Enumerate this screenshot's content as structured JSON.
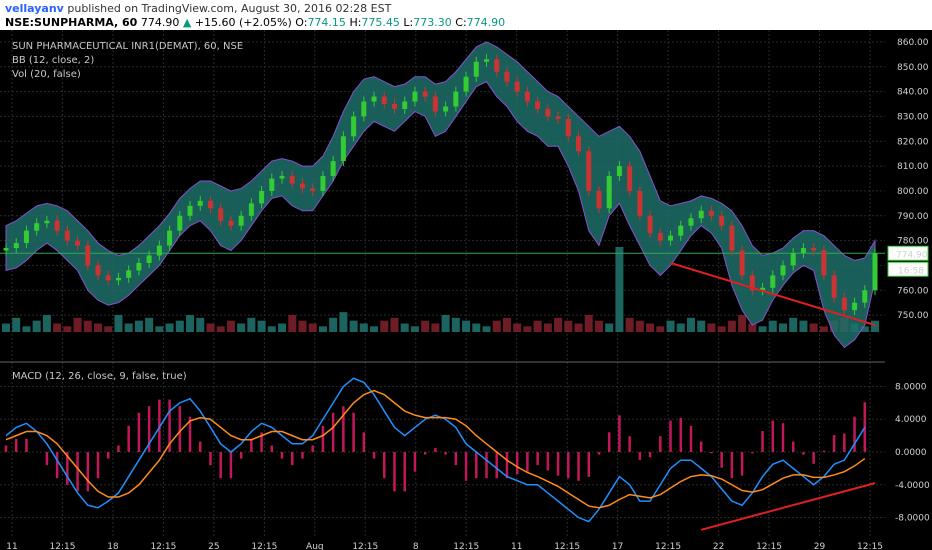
{
  "header": {
    "author": "vellayanv",
    "published_text": "published on TradingView.com, August 30, 2016 02:28 EST",
    "symbol_interval": "NSE:SUNPHARMA, 60",
    "last": "774.90",
    "change": "+15.60 (+2.05%)",
    "o_label": "O:",
    "o_value": "774.15",
    "h_label": "H:",
    "h_value": "775.45",
    "l_label": "L:",
    "l_value": "773.30",
    "c_label": "C:",
    "c_value": "774.90"
  },
  "indicators": {
    "symbol_title": "SUN PHARMACEUTICAL INR1(DEMAT), 60, NSE",
    "bb": "BB (12, close, 2)",
    "vol": "Vol (20, false)",
    "macd": "MACD (12, 26, close, 9, false, true)"
  },
  "colors": {
    "background": "#000000",
    "grid": "#2a2a2a",
    "bb_fill": "#1f6f6a",
    "bb_border": "#8a4fd0",
    "up": "#33cc33",
    "down": "#cc3333",
    "macd_line": "#1e90ff",
    "signal_line": "#ff8c1a",
    "histogram": "#c2185b",
    "trendline": "#e02020",
    "hline": "#2fa84f"
  },
  "chart_data": [
    {
      "type": "line",
      "name_hint": "price-panel",
      "x_ticks": [
        "11",
        "12:15",
        "18",
        "12:15",
        "25",
        "12:15",
        "Aug",
        "12:15",
        "8",
        "12:15",
        "11",
        "12:15",
        "17",
        "12:15",
        "22",
        "12:15",
        "29",
        "12:15"
      ],
      "y_ticks": [
        750,
        760,
        770,
        780,
        790,
        800,
        810,
        820,
        830,
        840,
        850,
        860
      ],
      "ylim": [
        744,
        864
      ],
      "close": [
        777,
        779,
        784,
        787,
        788,
        784,
        780,
        778,
        770,
        766,
        764,
        765,
        768,
        771,
        774,
        778,
        784,
        790,
        794,
        796,
        793,
        788,
        786,
        790,
        795,
        800,
        805,
        806,
        803,
        801,
        800,
        806,
        812,
        822,
        830,
        836,
        838,
        835,
        833,
        836,
        840,
        838,
        832,
        834,
        840,
        846,
        852,
        853,
        848,
        844,
        840,
        836,
        833,
        830,
        829,
        822,
        816,
        800,
        793,
        806,
        810,
        800,
        790,
        783,
        780,
        782,
        786,
        789,
        792,
        790,
        786,
        776,
        766,
        760,
        761,
        766,
        770,
        775,
        777,
        776,
        766,
        757,
        752,
        755,
        760,
        774.9
      ],
      "bb_upper": [
        786,
        788,
        791,
        794,
        795,
        794,
        792,
        788,
        784,
        779,
        776,
        774,
        775,
        778,
        782,
        786,
        791,
        797,
        801,
        804,
        804,
        802,
        800,
        801,
        804,
        808,
        812,
        813,
        812,
        810,
        810,
        814,
        822,
        832,
        840,
        845,
        846,
        844,
        842,
        843,
        846,
        846,
        843,
        844,
        848,
        853,
        858,
        860,
        858,
        855,
        852,
        848,
        844,
        840,
        838,
        834,
        830,
        826,
        822,
        824,
        826,
        822,
        816,
        806,
        796,
        794,
        795,
        796,
        798,
        797,
        795,
        792,
        786,
        778,
        774,
        775,
        777,
        781,
        784,
        784,
        782,
        778,
        774,
        772,
        773,
        780
      ],
      "bb_lower": [
        768,
        769,
        772,
        776,
        779,
        776,
        772,
        768,
        760,
        756,
        754,
        755,
        758,
        762,
        766,
        770,
        776,
        782,
        786,
        788,
        784,
        778,
        776,
        780,
        786,
        792,
        797,
        798,
        794,
        792,
        792,
        798,
        804,
        812,
        818,
        824,
        828,
        826,
        824,
        828,
        832,
        830,
        822,
        824,
        830,
        836,
        842,
        844,
        838,
        834,
        828,
        824,
        822,
        818,
        818,
        810,
        800,
        784,
        778,
        790,
        795,
        786,
        778,
        770,
        766,
        770,
        776,
        782,
        786,
        783,
        777,
        762,
        752,
        746,
        748,
        756,
        762,
        767,
        770,
        768,
        752,
        742,
        737,
        740,
        746,
        764
      ],
      "hline": 774.9,
      "volume": [
        3,
        5,
        2,
        4,
        6,
        3,
        2,
        5,
        4,
        3,
        2,
        6,
        3,
        4,
        5,
        2,
        3,
        4,
        6,
        5,
        3,
        2,
        4,
        3,
        5,
        4,
        2,
        3,
        6,
        4,
        3,
        2,
        5,
        7,
        4,
        3,
        2,
        4,
        5,
        3,
        2,
        4,
        3,
        6,
        5,
        4,
        3,
        2,
        4,
        5,
        3,
        2,
        4,
        3,
        5,
        4,
        3,
        6,
        4,
        3,
        30,
        5,
        4,
        3,
        2,
        4,
        3,
        5,
        4,
        3,
        2,
        4,
        6,
        3,
        2,
        4,
        3,
        5,
        4,
        3,
        2,
        4,
        5,
        3,
        2,
        4
      ],
      "trendline": [
        [
          65,
          771
        ],
        [
          85,
          746
        ]
      ],
      "price_labels": [
        "774.90",
        "16:58"
      ]
    },
    {
      "type": "line",
      "name_hint": "macd-panel",
      "y_ticks": [
        -8,
        -4,
        0,
        4,
        8
      ],
      "ylim": [
        -10.5,
        10.5
      ],
      "macd": [
        2,
        3,
        3.5,
        2.5,
        1,
        -1,
        -3,
        -5,
        -6.5,
        -6.8,
        -6,
        -5,
        -3,
        -1,
        1,
        3,
        5,
        6,
        6.5,
        5,
        3,
        1,
        0,
        1,
        2.5,
        3.5,
        3,
        2,
        1,
        1,
        2,
        4,
        6,
        8,
        9,
        8.5,
        7,
        5,
        3,
        2,
        3,
        4,
        4.5,
        4,
        3,
        1,
        0,
        -1,
        -2,
        -3,
        -3.5,
        -4,
        -4,
        -5,
        -6,
        -7,
        -8,
        -8.5,
        -7,
        -5,
        -3,
        -4,
        -6,
        -6,
        -4,
        -2,
        -1,
        -1,
        -2,
        -3,
        -4.5,
        -6,
        -6.5,
        -5,
        -3,
        -1.5,
        -1,
        -2,
        -3,
        -4,
        -3,
        -1.5,
        -1,
        1,
        3
      ],
      "signal": [
        1.5,
        2,
        2.5,
        2.5,
        2,
        1,
        -0.5,
        -2,
        -3.5,
        -4.8,
        -5.5,
        -5.5,
        -5,
        -4,
        -2.5,
        -1,
        1,
        2.5,
        3.8,
        4.2,
        4,
        3,
        2,
        1.5,
        1.5,
        2,
        2.5,
        2.5,
        2,
        1.5,
        1.5,
        2,
        3,
        4.5,
        6,
        7,
        7.5,
        7,
        6,
        5,
        4.5,
        4.2,
        4.2,
        4.2,
        4,
        3.2,
        2,
        1,
        0,
        -1,
        -1.8,
        -2.5,
        -3,
        -3.6,
        -4.2,
        -5,
        -5.8,
        -6.6,
        -6.8,
        -6.5,
        -5.8,
        -5.2,
        -5.4,
        -5.6,
        -5.2,
        -4.4,
        -3.6,
        -3,
        -2.8,
        -2.9,
        -3.3,
        -4,
        -4.7,
        -4.9,
        -4.6,
        -3.9,
        -3.2,
        -2.8,
        -2.8,
        -3.1,
        -3.1,
        -2.8,
        -2.4,
        -1.7,
        -0.8
      ],
      "trendline": [
        [
          68,
          -9.5
        ],
        [
          85,
          -3.8
        ]
      ]
    }
  ]
}
